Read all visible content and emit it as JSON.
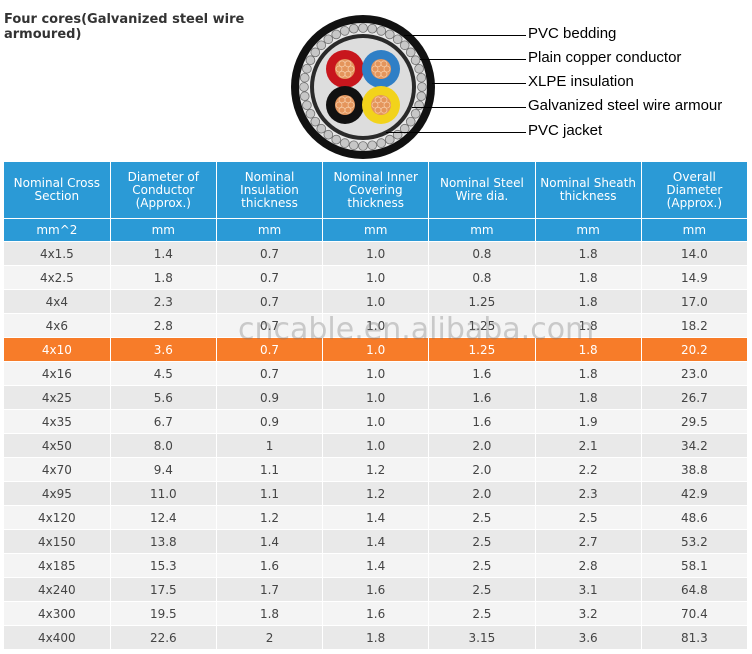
{
  "title": "Four cores(Galvanized steel wire armoured)",
  "cable_diagram": {
    "labels": [
      "PVC bedding",
      "Plain copper conductor",
      "XLPE insulation",
      "Galvanized steel wire armour",
      "PVC jacket"
    ],
    "core_colors": [
      "#c8161d",
      "#2f7fc6",
      "#111111",
      "#f2d31b"
    ],
    "copper_color": "#e4955c"
  },
  "table": {
    "headers": [
      "Nominal Cross Section",
      "Diameter of Conductor (Approx.)",
      "Nominal Insulation thickness",
      "Nominal Inner Covering thickness",
      "Nominal Steel Wire dia.",
      "Nominal Sheath thickness",
      "Overall Diameter (Approx.)"
    ],
    "units": [
      "mm^2",
      "mm",
      "mm",
      "mm",
      "mm",
      "mm",
      "mm"
    ],
    "header_color": "#2b9ad6",
    "highlight_color": "#f77c29",
    "highlight_row": 4,
    "rows": [
      [
        "4x1.5",
        "1.4",
        "0.7",
        "1.0",
        "0.8",
        "1.8",
        "14.0"
      ],
      [
        "4x2.5",
        "1.8",
        "0.7",
        "1.0",
        "0.8",
        "1.8",
        "14.9"
      ],
      [
        "4x4",
        "2.3",
        "0.7",
        "1.0",
        "1.25",
        "1.8",
        "17.0"
      ],
      [
        "4x6",
        "2.8",
        "0.7",
        "1.0",
        "1.25",
        "1.8",
        "18.2"
      ],
      [
        "4x10",
        "3.6",
        "0.7",
        "1.0",
        "1.25",
        "1.8",
        "20.2"
      ],
      [
        "4x16",
        "4.5",
        "0.7",
        "1.0",
        "1.6",
        "1.8",
        "23.0"
      ],
      [
        "4x25",
        "5.6",
        "0.9",
        "1.0",
        "1.6",
        "1.8",
        "26.7"
      ],
      [
        "4x35",
        "6.7",
        "0.9",
        "1.0",
        "1.6",
        "1.9",
        "29.5"
      ],
      [
        "4x50",
        "8.0",
        "1",
        "1.0",
        "2.0",
        "2.1",
        "34.2"
      ],
      [
        "4x70",
        "9.4",
        "1.1",
        "1.2",
        "2.0",
        "2.2",
        "38.8"
      ],
      [
        "4x95",
        "11.0",
        "1.1",
        "1.2",
        "2.0",
        "2.3",
        "42.9"
      ],
      [
        "4x120",
        "12.4",
        "1.2",
        "1.4",
        "2.5",
        "2.5",
        "48.6"
      ],
      [
        "4x150",
        "13.8",
        "1.4",
        "1.4",
        "2.5",
        "2.7",
        "53.2"
      ],
      [
        "4x185",
        "15.3",
        "1.6",
        "1.4",
        "2.5",
        "2.8",
        "58.1"
      ],
      [
        "4x240",
        "17.5",
        "1.7",
        "1.6",
        "2.5",
        "3.1",
        "64.8"
      ],
      [
        "4x300",
        "19.5",
        "1.8",
        "1.6",
        "2.5",
        "3.2",
        "70.4"
      ],
      [
        "4x400",
        "22.6",
        "2",
        "1.8",
        "3.15",
        "3.6",
        "81.3"
      ]
    ]
  },
  "watermark": "cncable.en.alibaba.com"
}
